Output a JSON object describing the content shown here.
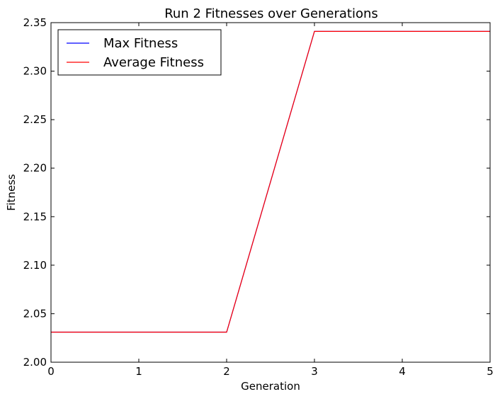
{
  "chart_data": {
    "type": "line",
    "title": "Run 2 Fitnesses over Generations",
    "xlabel": "Generation",
    "ylabel": "Fitness",
    "xlim": [
      0,
      5
    ],
    "ylim": [
      2.0,
      2.35
    ],
    "x_ticks": [
      0,
      1,
      2,
      3,
      4,
      5
    ],
    "x_tick_labels": [
      "0",
      "1",
      "2",
      "3",
      "4",
      "5"
    ],
    "y_ticks": [
      2.0,
      2.05,
      2.1,
      2.15,
      2.2,
      2.25,
      2.3,
      2.35
    ],
    "y_tick_labels": [
      "2.00",
      "2.05",
      "2.10",
      "2.15",
      "2.20",
      "2.25",
      "2.30",
      "2.35"
    ],
    "grid": false,
    "legend_position": "top-left",
    "x": [
      0,
      1,
      2,
      3,
      4,
      5
    ],
    "series": [
      {
        "name": "Max Fitness",
        "color": "#0000ff",
        "values": [
          2.031,
          2.031,
          2.031,
          2.341,
          2.341,
          2.341
        ]
      },
      {
        "name": "Average Fitness",
        "color": "#ff0000",
        "values": [
          2.031,
          2.031,
          2.031,
          2.341,
          2.341,
          2.341
        ]
      }
    ]
  }
}
